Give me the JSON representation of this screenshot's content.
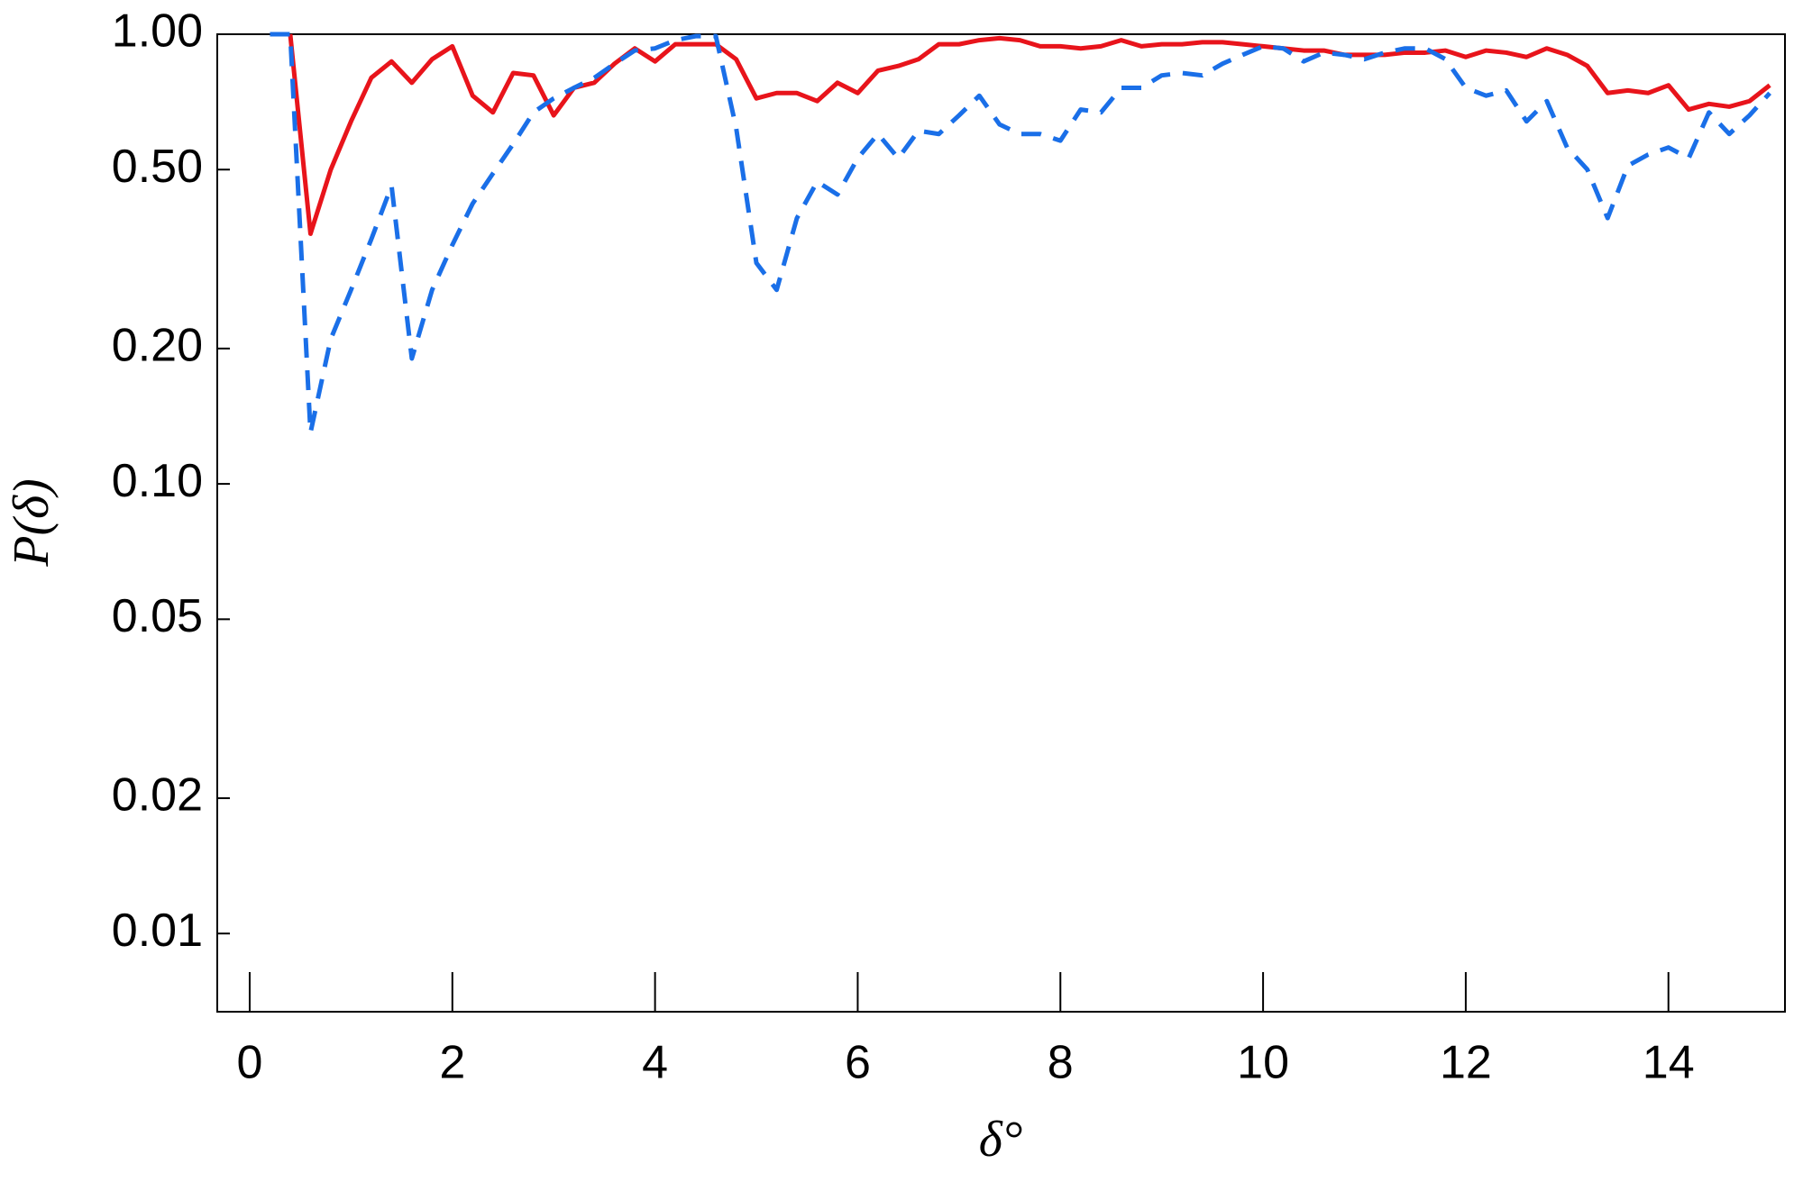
{
  "chart_data": {
    "type": "line",
    "xlabel": "δ°",
    "ylabel": "P(δ)",
    "yscale": "log",
    "xlim": [
      -0.32,
      15.15
    ],
    "ylim": [
      0.0067,
      1
    ],
    "xticks": [
      0,
      2,
      4,
      6,
      8,
      10,
      12,
      14
    ],
    "yticks": [
      0.01,
      0.02,
      0.05,
      {
        "value": 0.1,
        "label": "0.10"
      },
      {
        "value": 0.2,
        "label": "0.20"
      },
      {
        "value": 0.5,
        "label": "0.50"
      },
      {
        "value": 1,
        "label": "1.00"
      }
    ],
    "x": [
      0.2,
      0.4,
      0.6,
      0.8,
      1.0,
      1.2,
      1.4,
      1.6,
      1.8,
      2.0,
      2.2,
      2.4,
      2.6,
      2.8,
      3.0,
      3.2,
      3.4,
      3.6,
      3.8,
      4.0,
      4.2,
      4.4,
      4.6,
      4.8,
      5.0,
      5.2,
      5.4,
      5.6,
      5.8,
      6.0,
      6.2,
      6.4,
      6.6,
      6.8,
      7.0,
      7.2,
      7.4,
      7.6,
      7.8,
      8.0,
      8.2,
      8.4,
      8.6,
      8.8,
      9.0,
      9.2,
      9.4,
      9.6,
      9.8,
      10.0,
      10.2,
      10.4,
      10.6,
      10.8,
      11.0,
      11.2,
      11.4,
      11.6,
      11.8,
      12.0,
      12.2,
      12.4,
      12.6,
      12.8,
      13.0,
      13.2,
      13.4,
      13.6,
      13.8,
      14.0,
      14.2,
      14.4,
      14.6,
      14.8,
      15.0
    ],
    "series": [
      {
        "color": "#e8141b",
        "linestyle": "solid",
        "values": [
          null,
          1.0,
          0.36,
          0.5,
          0.64,
          0.8,
          0.87,
          0.78,
          0.88,
          0.94,
          0.73,
          0.67,
          0.82,
          0.81,
          0.66,
          0.76,
          0.78,
          0.86,
          0.93,
          0.87,
          0.95,
          0.95,
          0.95,
          0.88,
          0.72,
          0.74,
          0.74,
          0.71,
          0.78,
          0.74,
          0.83,
          0.85,
          0.88,
          0.95,
          0.95,
          0.97,
          0.98,
          0.97,
          0.94,
          0.94,
          0.93,
          0.94,
          0.97,
          0.94,
          0.95,
          0.95,
          0.96,
          0.96,
          0.95,
          0.94,
          0.93,
          0.92,
          0.92,
          0.9,
          0.9,
          0.9,
          0.91,
          0.91,
          0.92,
          0.89,
          0.92,
          0.91,
          0.89,
          0.93,
          0.9,
          0.85,
          0.74,
          0.75,
          0.74,
          0.77,
          0.68,
          0.7,
          0.69,
          0.71,
          0.77
        ]
      },
      {
        "color": "#1a6fe8",
        "linestyle": "dashed",
        "values": [
          1.0,
          1.0,
          0.13,
          0.21,
          0.27,
          0.35,
          0.46,
          0.19,
          0.27,
          0.34,
          0.42,
          0.49,
          0.57,
          0.67,
          0.72,
          0.76,
          0.8,
          0.86,
          0.92,
          0.93,
          0.97,
          0.99,
          0.99,
          0.62,
          0.31,
          0.27,
          0.39,
          0.47,
          0.44,
          0.53,
          0.6,
          0.53,
          0.61,
          0.6,
          0.66,
          0.73,
          0.63,
          0.6,
          0.6,
          0.58,
          0.68,
          0.67,
          0.76,
          0.76,
          0.81,
          0.82,
          0.81,
          0.86,
          0.9,
          0.94,
          0.93,
          0.87,
          0.91,
          0.9,
          0.88,
          0.91,
          0.93,
          0.93,
          0.88,
          0.76,
          0.73,
          0.75,
          0.64,
          0.71,
          0.56,
          0.5,
          0.39,
          0.51,
          0.54,
          0.56,
          0.53,
          0.67,
          0.6,
          0.66,
          0.74
        ]
      }
    ]
  }
}
